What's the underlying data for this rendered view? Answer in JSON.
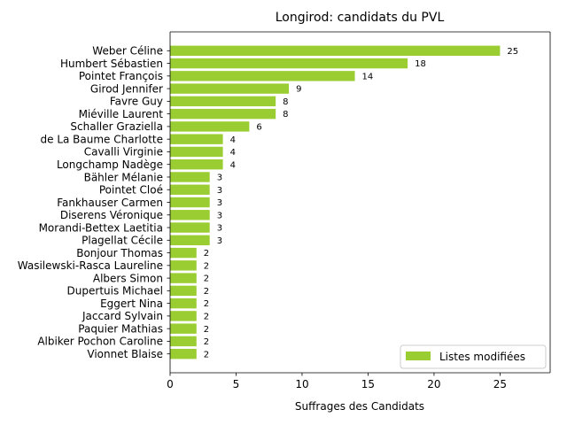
{
  "chart_data": {
    "type": "bar",
    "orientation": "horizontal",
    "title": "Longirod: candidats du PVL",
    "xlabel": "Suffrages des Candidats",
    "ylabel": "",
    "xlim": [
      0,
      28.8
    ],
    "xticks": [
      0,
      5,
      10,
      15,
      20,
      25
    ],
    "grid": false,
    "legend_position": "lower-right",
    "bar_color": "#9acd32",
    "categories": [
      "Weber Céline",
      "Humbert Sébastien",
      "Pointet François",
      "Girod Jennifer",
      "Favre Guy",
      "Miéville Laurent",
      "Schaller Graziella",
      "de La Baume Charlotte",
      "Cavalli Virginie",
      "Longchamp Nadège",
      "Bähler Mélanie",
      "Pointet Cloé",
      "Fankhauser Carmen",
      "Diserens Véronique",
      "Morandi-Bettex Laetitia",
      "Plagellat Cécile",
      "Bonjour Thomas",
      "Wasilewski-Rasca Laureline",
      "Albers Simon",
      "Dupertuis Michael",
      "Eggert Nina",
      "Jaccard Sylvain",
      "Paquier Mathias",
      "Albiker Pochon Caroline",
      "Vionnet Blaise"
    ],
    "series": [
      {
        "name": "Listes modifiées",
        "values": [
          25,
          18,
          14,
          9,
          8,
          8,
          6,
          4,
          4,
          4,
          3,
          3,
          3,
          3,
          3,
          3,
          2,
          2,
          2,
          2,
          2,
          2,
          2,
          2,
          2
        ]
      }
    ]
  }
}
